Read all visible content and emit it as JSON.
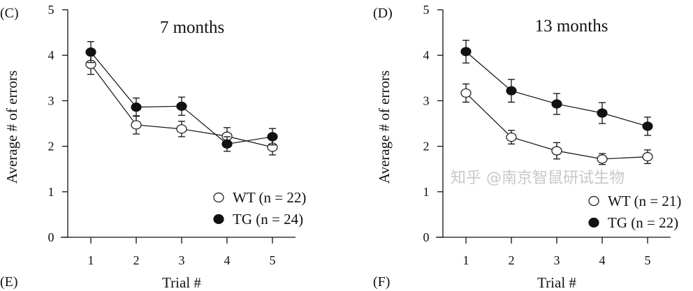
{
  "panel_labels": [
    "(C)",
    "(D)",
    "(E)",
    "(F)"
  ],
  "watermark": "知乎 @南京智鼠研试生物",
  "chart_data": [
    {
      "type": "line",
      "title": "7 months",
      "xlabel": "Trial #",
      "ylabel": "Average # of errors",
      "x": [
        1,
        2,
        3,
        4,
        5
      ],
      "xticks": [
        "1",
        "2",
        "3",
        "4",
        "5"
      ],
      "yticks": [
        "0",
        "1",
        "2",
        "3",
        "4",
        "5"
      ],
      "ylim": [
        0,
        5
      ],
      "grid": false,
      "legend_position": "bottom-right",
      "series": [
        {
          "name": "WT (n = 22)",
          "marker": "open-circle",
          "values": [
            3.8,
            2.47,
            2.38,
            2.22,
            1.98
          ],
          "errors": [
            0.22,
            0.2,
            0.17,
            0.19,
            0.17
          ]
        },
        {
          "name": "TG (n = 24)",
          "marker": "filled-circle",
          "values": [
            4.07,
            2.86,
            2.88,
            2.05,
            2.21
          ],
          "errors": [
            0.23,
            0.2,
            0.2,
            0.16,
            0.18
          ]
        }
      ]
    },
    {
      "type": "line",
      "title": "13 months",
      "xlabel": "Trial #",
      "ylabel": "Average # of errors",
      "x": [
        1,
        2,
        3,
        4,
        5
      ],
      "xticks": [
        "1",
        "2",
        "3",
        "4",
        "5"
      ],
      "yticks": [
        "0",
        "1",
        "2",
        "3",
        "4",
        "5"
      ],
      "ylim": [
        0,
        5
      ],
      "grid": false,
      "legend_position": "bottom-right",
      "series": [
        {
          "name": "WT (n = 21)",
          "marker": "open-circle",
          "values": [
            3.17,
            2.2,
            1.9,
            1.72,
            1.77
          ],
          "errors": [
            0.2,
            0.15,
            0.18,
            0.12,
            0.15
          ]
        },
        {
          "name": "TG (n = 22)",
          "marker": "filled-circle",
          "values": [
            4.08,
            3.22,
            2.93,
            2.73,
            2.44
          ],
          "errors": [
            0.25,
            0.25,
            0.23,
            0.23,
            0.2
          ]
        }
      ]
    }
  ]
}
